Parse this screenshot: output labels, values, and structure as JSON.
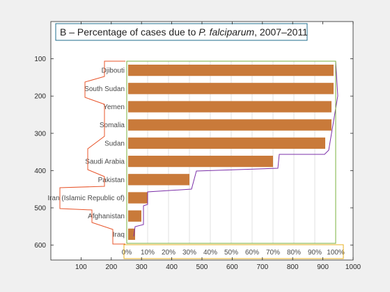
{
  "figure": {
    "background": "#f0f0f0",
    "axes_background": "#ffffff",
    "title": "B – Percentage of cases due to P. falciparum, 2007–2011",
    "title_prefix": "B – Percentage of cases due to ",
    "title_italic": "P. falciparum",
    "title_suffix": ", 2007–2011"
  },
  "chart_data": {
    "type": "bar",
    "orientation": "horizontal",
    "title": "B – Percentage of cases due to P. falciparum, 2007–2011",
    "xlabel": "",
    "ylabel": "",
    "categories": [
      "Djibouti",
      "South Sudan",
      "Yemen",
      "Somalia",
      "Sudan",
      "Saudi Arabia",
      "Pakistan",
      "Iran (Islamic Republic of)",
      "Afghanistan",
      "Iraq"
    ],
    "values": [
      99,
      99,
      98,
      98,
      95,
      70,
      30,
      10,
      7,
      4
    ],
    "value_unit": "%",
    "percent_ticks": [
      "0%",
      "10%",
      "20%",
      "30%",
      "40%",
      "50%",
      "60%",
      "70%",
      "80%",
      "90%",
      "100%"
    ],
    "bar_color": "#c97a3a",
    "outer_axes": {
      "xlim": [
        0,
        1000
      ],
      "ylim": [
        0,
        640
      ],
      "y_reversed": true,
      "xticks": [
        100,
        200,
        300,
        400,
        500,
        600,
        700,
        800,
        900,
        1000
      ],
      "yticks": [
        100,
        200,
        300,
        400,
        500,
        600
      ]
    },
    "annotations": [
      {
        "kind": "label-box",
        "color": "#1f6e8c",
        "target": "title"
      },
      {
        "kind": "outline",
        "color": "#e8542a",
        "target": "category-labels"
      },
      {
        "kind": "outline",
        "color": "#7b2fa8",
        "target": "bar-ends"
      },
      {
        "kind": "rectangle",
        "color": "#7ab03c",
        "target": "plot-area"
      },
      {
        "kind": "rectangle",
        "color": "#e8b020",
        "target": "percent-axis"
      }
    ],
    "grid": true
  }
}
